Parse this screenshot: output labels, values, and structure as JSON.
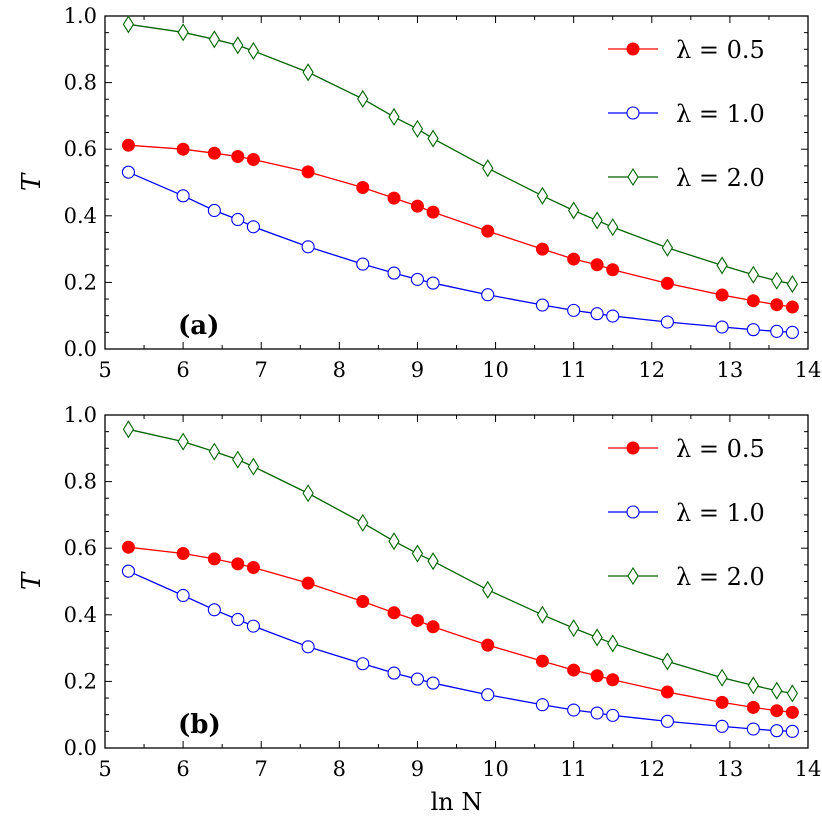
{
  "chart_data": [
    {
      "type": "line",
      "panel_label": "(a)",
      "xlabel": "",
      "ylabel": "T",
      "xlim": [
        5,
        14
      ],
      "ylim": [
        0.0,
        1.0
      ],
      "x_ticks": [
        "5",
        "6",
        "7",
        "8",
        "9",
        "10",
        "11",
        "12",
        "13",
        "14"
      ],
      "y_ticks": [
        "0.0",
        "0.2",
        "0.4",
        "0.6",
        "0.8",
        "1.0"
      ],
      "legend_position": "top-right",
      "x": [
        5.3,
        6.0,
        6.4,
        6.7,
        6.9,
        7.6,
        8.3,
        8.7,
        9.0,
        9.2,
        9.9,
        10.6,
        11.0,
        11.3,
        11.5,
        12.2,
        12.9,
        13.3,
        13.6,
        13.8
      ],
      "series": [
        {
          "name": "λ = 0.5",
          "color": "#ff0000",
          "marker": "filled-circle",
          "values": [
            0.612,
            0.6,
            0.588,
            0.578,
            0.569,
            0.532,
            0.485,
            0.453,
            0.429,
            0.411,
            0.354,
            0.3,
            0.27,
            0.253,
            0.238,
            0.197,
            0.162,
            0.145,
            0.133,
            0.126
          ]
        },
        {
          "name": "λ = 1.0",
          "color": "#0000ff",
          "marker": "open-circle",
          "values": [
            0.531,
            0.46,
            0.416,
            0.389,
            0.367,
            0.307,
            0.255,
            0.228,
            0.209,
            0.198,
            0.163,
            0.132,
            0.116,
            0.106,
            0.099,
            0.081,
            0.066,
            0.058,
            0.053,
            0.05
          ]
        },
        {
          "name": "λ = 2.0",
          "color": "#006400",
          "marker": "open-diamond",
          "values": [
            0.975,
            0.951,
            0.93,
            0.912,
            0.895,
            0.831,
            0.751,
            0.697,
            0.661,
            0.632,
            0.543,
            0.46,
            0.416,
            0.386,
            0.366,
            0.304,
            0.251,
            0.223,
            0.205,
            0.195
          ]
        }
      ]
    },
    {
      "type": "line",
      "panel_label": "(b)",
      "xlabel": "ln N",
      "ylabel": "T",
      "xlim": [
        5,
        14
      ],
      "ylim": [
        0.0,
        1.0
      ],
      "x_ticks": [
        "5",
        "6",
        "7",
        "8",
        "9",
        "10",
        "11",
        "12",
        "13",
        "14"
      ],
      "y_ticks": [
        "0.0",
        "0.2",
        "0.4",
        "0.6",
        "0.8",
        "1.0"
      ],
      "legend_position": "top-right",
      "x": [
        5.3,
        6.0,
        6.4,
        6.7,
        6.9,
        7.6,
        8.3,
        8.7,
        9.0,
        9.2,
        9.9,
        10.6,
        11.0,
        11.3,
        11.5,
        12.2,
        12.9,
        13.3,
        13.6,
        13.8
      ],
      "series": [
        {
          "name": "λ = 0.5",
          "color": "#ff0000",
          "marker": "filled-circle",
          "values": [
            0.603,
            0.584,
            0.568,
            0.553,
            0.542,
            0.495,
            0.44,
            0.406,
            0.383,
            0.364,
            0.309,
            0.261,
            0.234,
            0.217,
            0.205,
            0.168,
            0.137,
            0.122,
            0.112,
            0.107
          ]
        },
        {
          "name": "λ = 1.0",
          "color": "#0000ff",
          "marker": "open-circle",
          "values": [
            0.531,
            0.458,
            0.415,
            0.386,
            0.366,
            0.304,
            0.253,
            0.225,
            0.207,
            0.195,
            0.16,
            0.13,
            0.114,
            0.105,
            0.098,
            0.08,
            0.065,
            0.057,
            0.052,
            0.05
          ]
        },
        {
          "name": "λ = 2.0",
          "color": "#006400",
          "marker": "open-diamond",
          "values": [
            0.957,
            0.92,
            0.89,
            0.866,
            0.845,
            0.765,
            0.676,
            0.621,
            0.584,
            0.561,
            0.475,
            0.4,
            0.36,
            0.332,
            0.314,
            0.26,
            0.211,
            0.188,
            0.172,
            0.164
          ]
        }
      ]
    }
  ]
}
